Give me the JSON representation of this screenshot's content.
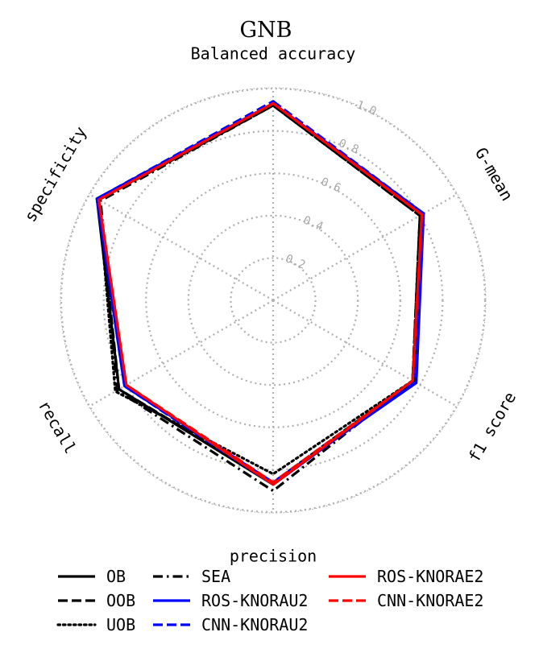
{
  "chart_data": {
    "type": "radar",
    "title": "GNB",
    "axes": [
      "Balanced accuracy",
      "G-mean",
      "f1 score",
      "precision",
      "recall",
      "specificity"
    ],
    "rlim": [
      0,
      1
    ],
    "rticks": [
      "0.2",
      "0.4",
      "0.6",
      "0.8",
      "1.0"
    ],
    "grid": true,
    "legend_position": "bottom",
    "series": [
      {
        "name": "OB",
        "color": "#000000",
        "dash": "solid",
        "values": [
          0.93,
          0.81,
          0.77,
          0.87,
          0.84,
          0.96
        ]
      },
      {
        "name": "OOB",
        "color": "#000000",
        "dash": "dashed",
        "values": [
          0.92,
          0.8,
          0.76,
          0.86,
          0.84,
          0.95
        ]
      },
      {
        "name": "UOB",
        "color": "#000000",
        "dash": "dotted",
        "values": [
          0.92,
          0.8,
          0.76,
          0.82,
          0.86,
          0.95
        ]
      },
      {
        "name": "SEA",
        "color": "#000000",
        "dash": "dashdot",
        "values": [
          0.92,
          0.8,
          0.76,
          0.9,
          0.85,
          0.94
        ]
      },
      {
        "name": "ROS-KNORAU2",
        "color": "#0000ff",
        "dash": "solid",
        "values": [
          0.93,
          0.82,
          0.78,
          0.86,
          0.81,
          0.96
        ]
      },
      {
        "name": "CNN-KNORAU2",
        "color": "#0000ff",
        "dash": "dashed",
        "values": [
          0.94,
          0.82,
          0.77,
          0.87,
          0.81,
          0.96
        ]
      },
      {
        "name": "ROS-KNORAE2",
        "color": "#ff0000",
        "dash": "solid",
        "values": [
          0.93,
          0.81,
          0.76,
          0.87,
          0.8,
          0.95
        ]
      },
      {
        "name": "CNN-KNORAE2",
        "color": "#ff0000",
        "dash": "dashed",
        "values": [
          0.93,
          0.81,
          0.76,
          0.86,
          0.8,
          0.95
        ]
      }
    ]
  }
}
